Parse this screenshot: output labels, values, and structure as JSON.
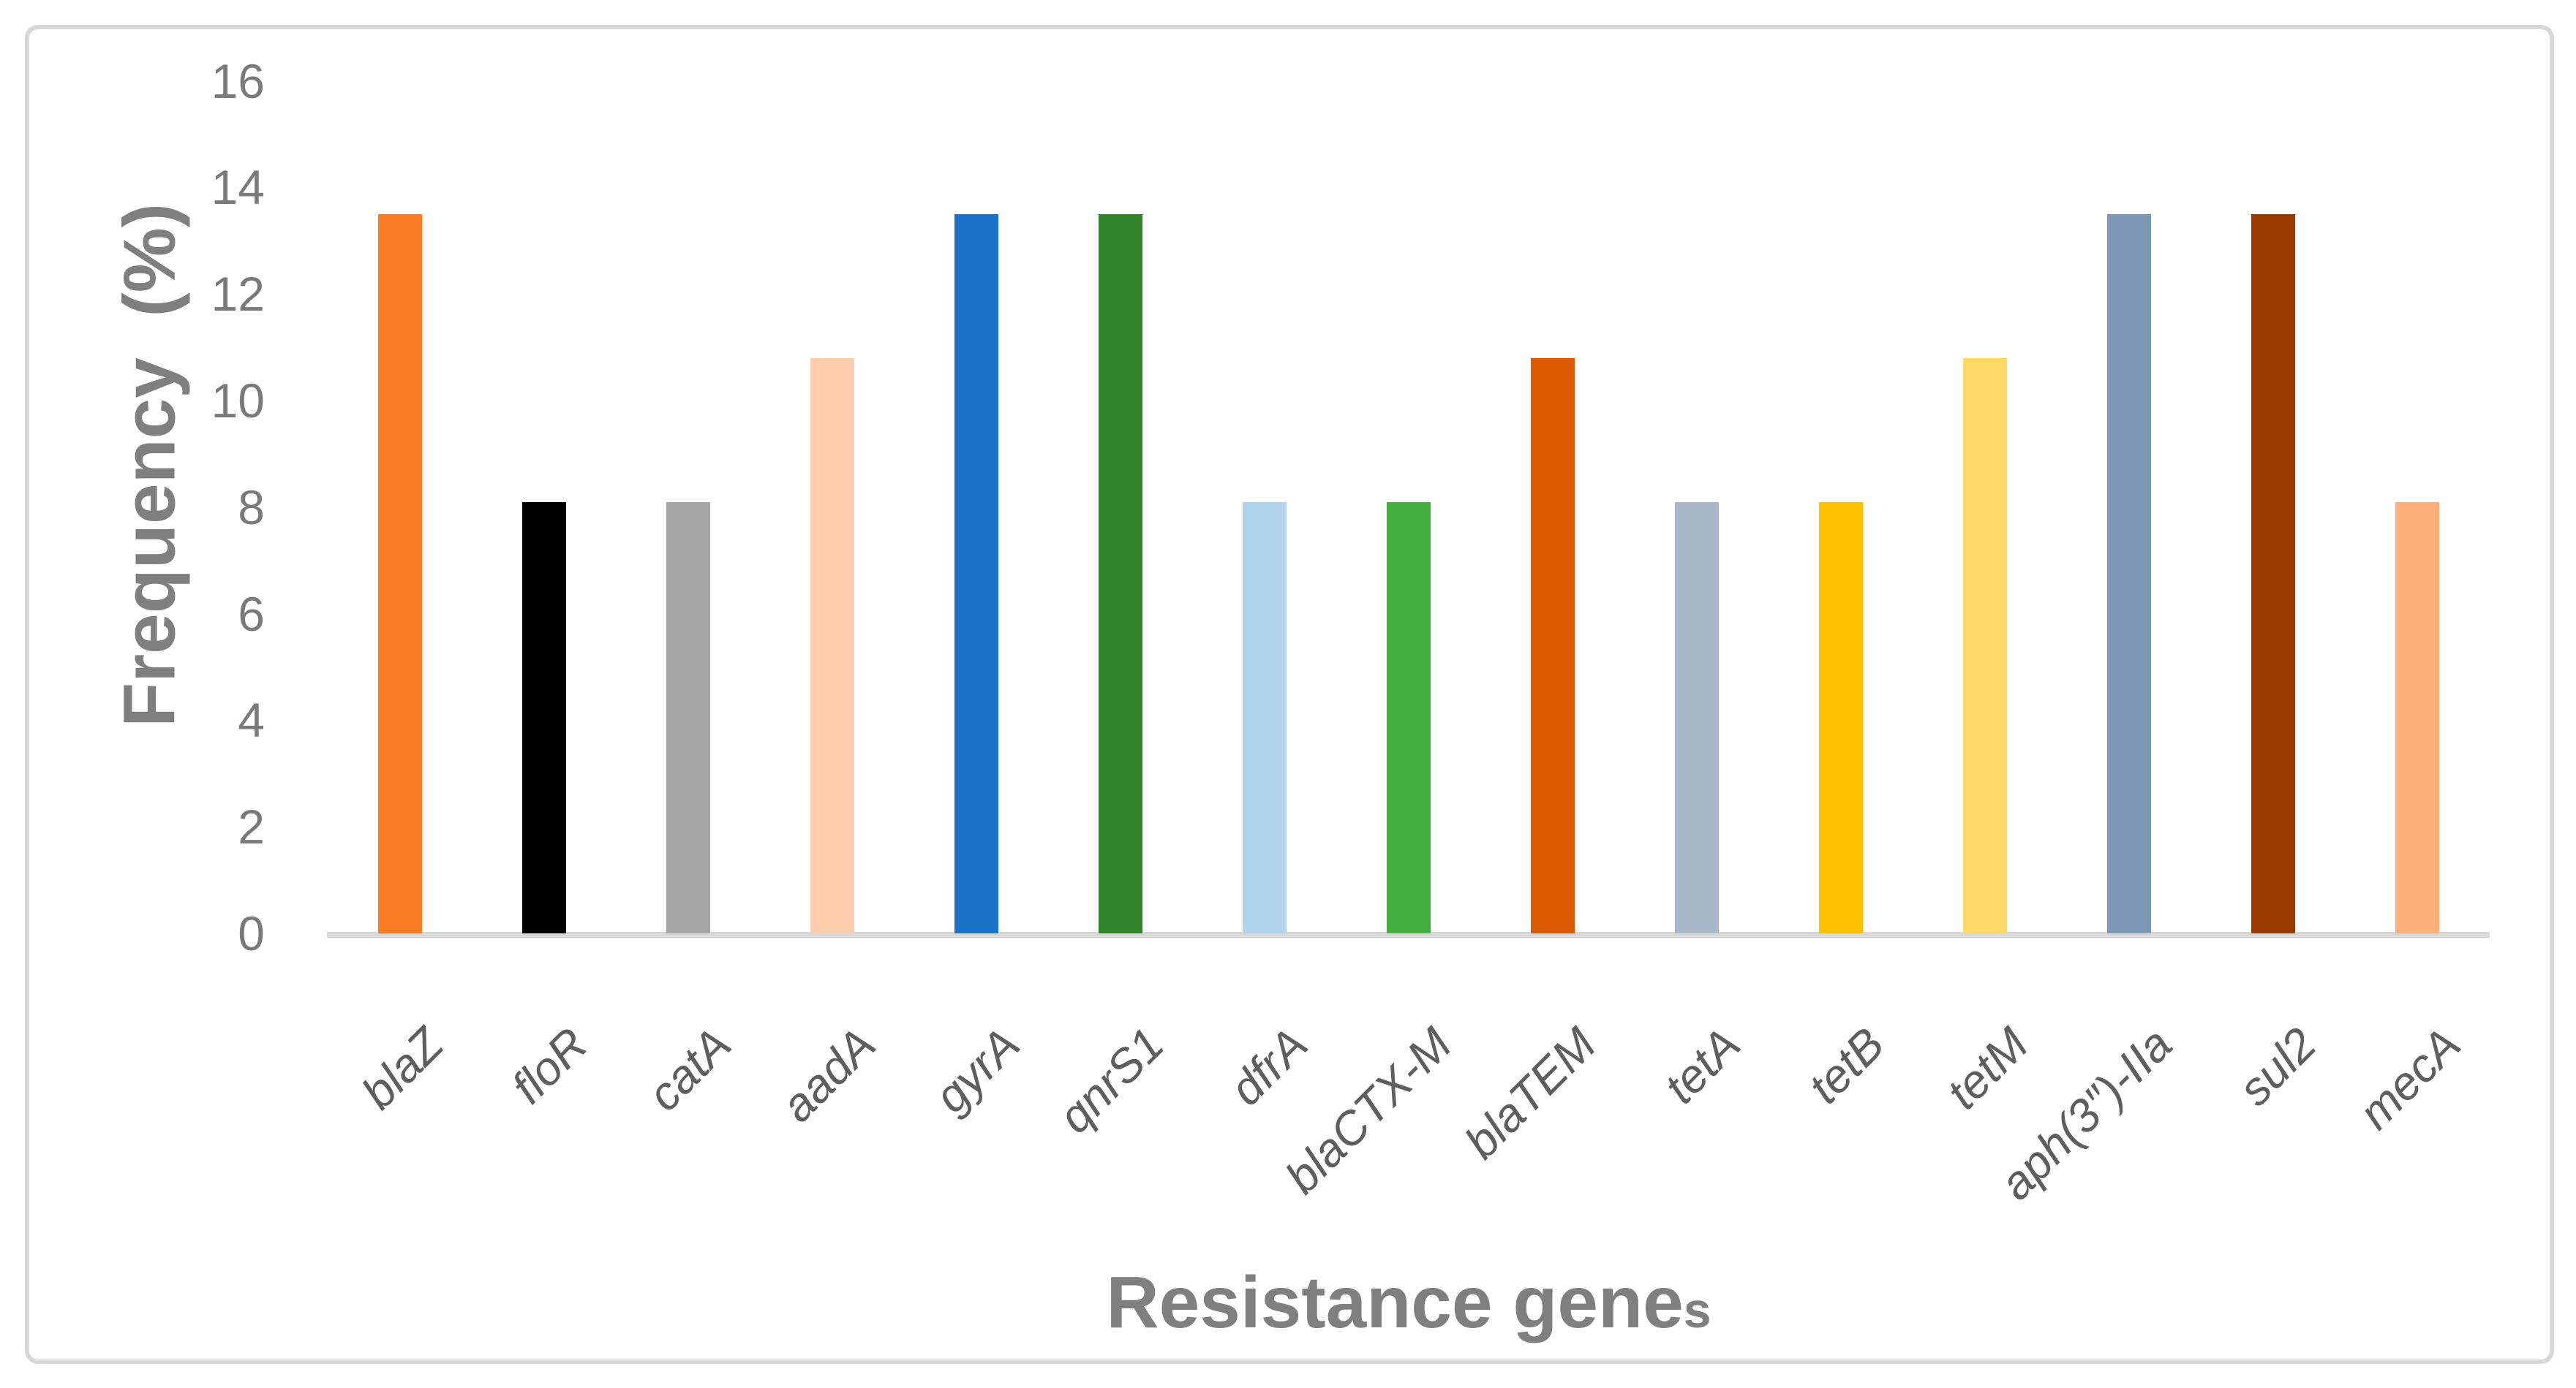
{
  "chart_data": {
    "type": "bar",
    "title": "",
    "xlabel": "Resistance genes",
    "ylabel": "Frequency  (%)",
    "categories": [
      "blaZ",
      "floR",
      "catA",
      "aadA",
      "gyrA",
      "qnrS1",
      "dfrA",
      "blaCTX-M",
      "blaTEM",
      "tetA",
      "tetB",
      "tetM",
      "aph(3″)-IIa",
      "sul2",
      "mecA"
    ],
    "values": [
      13.5,
      8.1,
      8.1,
      10.8,
      13.5,
      13.5,
      8.1,
      8.1,
      10.8,
      8.1,
      8.1,
      10.8,
      13.5,
      13.5,
      8.1
    ],
    "bar_colors": [
      "#FA7D26",
      "#000000",
      "#A6A6A6",
      "#FDCDAE",
      "#1B73C8",
      "#318429",
      "#B1D5EC",
      "#44AD40",
      "#DC5A02",
      "#A9B8C8",
      "#FFC000",
      "#FFD965",
      "#7D99B5",
      "#993B00",
      "#FEB07C"
    ],
    "ylim": [
      0,
      16
    ],
    "yticks": [
      0,
      2,
      4,
      6,
      8,
      10,
      12,
      14,
      16
    ],
    "grid": false,
    "legend_position": "none",
    "category_label_rotation_deg": 45,
    "category_label_style": "italic"
  },
  "labels": {
    "x_title_main": "Resistance gene",
    "x_title_suffix": "s"
  },
  "style_colors": {
    "axis_line": "#D9D9D9",
    "frame_border": "#D8D8D8",
    "tick_text": "#7A7A7A",
    "category_text": "#5E5E5E",
    "title_text": "#7F7F7F",
    "background": "#FFFFFF"
  }
}
